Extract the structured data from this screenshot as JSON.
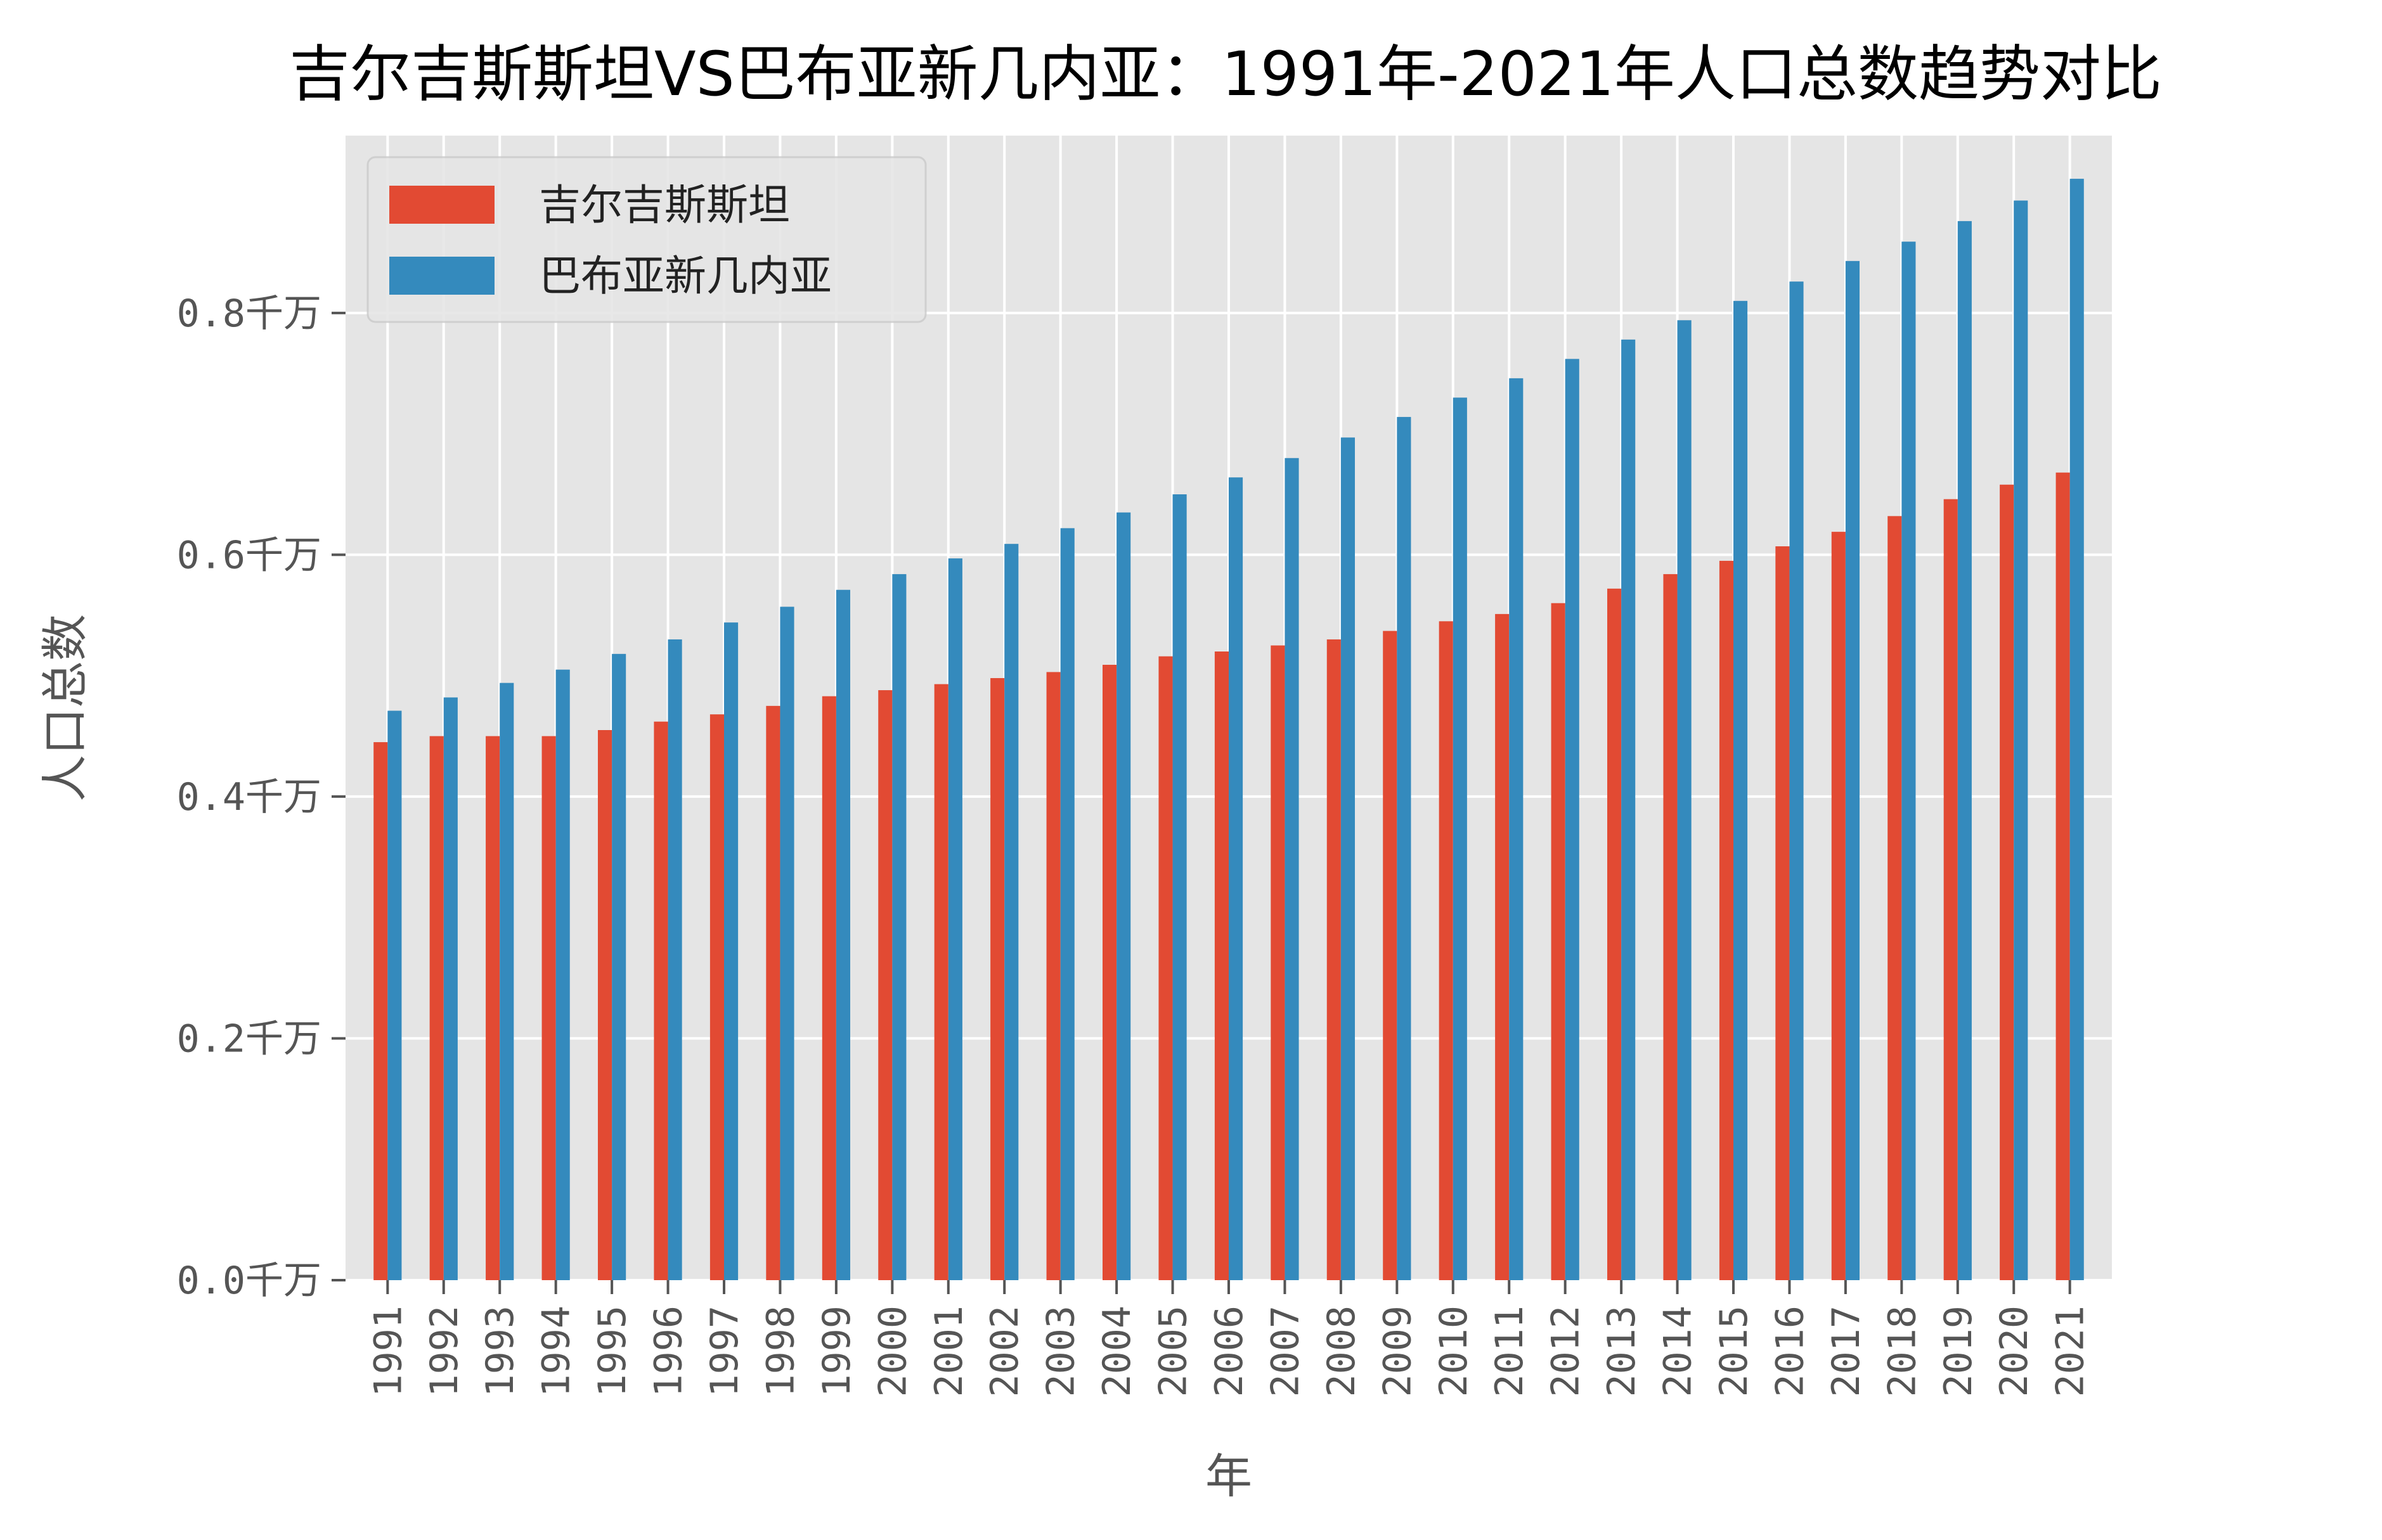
{
  "chart_data": {
    "type": "bar",
    "title": "吉尔吉斯斯坦VS巴布亚新几内亚：1991年-2021年人口总数趋势对比",
    "xlabel": "年",
    "ylabel": "人口总数",
    "y_unit_suffix": "千万",
    "ylim": [
      0,
      0.9467
    ],
    "yticks": [
      0.0,
      0.2,
      0.4,
      0.6,
      0.8
    ],
    "ytick_labels": [
      "0.0千万",
      "0.2千万",
      "0.4千万",
      "0.6千万",
      "0.8千万"
    ],
    "grid": true,
    "legend_position": "top-left",
    "categories": [
      "1991",
      "1992",
      "1993",
      "1994",
      "1995",
      "1996",
      "1997",
      "1998",
      "1999",
      "2000",
      "2001",
      "2002",
      "2003",
      "2004",
      "2005",
      "2006",
      "2007",
      "2008",
      "2009",
      "2010",
      "2011",
      "2012",
      "2013",
      "2014",
      "2015",
      "2016",
      "2017",
      "2018",
      "2019",
      "2020",
      "2021"
    ],
    "series": [
      {
        "name": "吉尔吉斯斯坦",
        "color": "#E24A33",
        "values": [
          0.445,
          0.45,
          0.45,
          0.45,
          0.455,
          0.462,
          0.468,
          0.475,
          0.483,
          0.488,
          0.493,
          0.498,
          0.503,
          0.509,
          0.516,
          0.52,
          0.525,
          0.53,
          0.537,
          0.545,
          0.551,
          0.56,
          0.572,
          0.584,
          0.595,
          0.607,
          0.619,
          0.632,
          0.646,
          0.658,
          0.668
        ]
      },
      {
        "name": "巴布亚新几内亚",
        "color": "#348ABD",
        "values": [
          0.471,
          0.482,
          0.494,
          0.505,
          0.518,
          0.53,
          0.544,
          0.557,
          0.571,
          0.584,
          0.597,
          0.609,
          0.622,
          0.635,
          0.65,
          0.664,
          0.68,
          0.697,
          0.714,
          0.73,
          0.746,
          0.762,
          0.778,
          0.794,
          0.81,
          0.826,
          0.843,
          0.859,
          0.876,
          0.893,
          0.911
        ]
      }
    ]
  },
  "colors": {
    "plot_background": "#E5E5E5",
    "grid": "#FFFFFF",
    "tick_text": "#555555"
  }
}
